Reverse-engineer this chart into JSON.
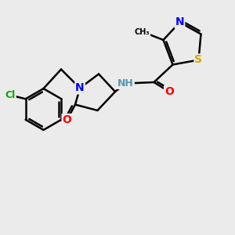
{
  "background_color": "#ebebeb",
  "bond_color": "#000000",
  "atom_colors": {
    "N": "#0000ff",
    "O": "#ff0000",
    "S": "#ccaa00",
    "Cl": "#00aa00",
    "H_label": "#5599aa",
    "C": "#000000"
  },
  "figsize": [
    3.0,
    3.0
  ],
  "dpi": 100,
  "lw": 1.8,
  "font_size": 9
}
